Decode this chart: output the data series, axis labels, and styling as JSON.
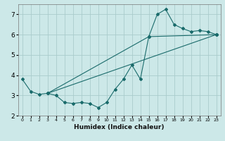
{
  "xlabel": "Humidex (Indice chaleur)",
  "xlim": [
    -0.5,
    23.5
  ],
  "ylim": [
    2,
    7.5
  ],
  "xticks": [
    0,
    1,
    2,
    3,
    4,
    5,
    6,
    7,
    8,
    9,
    10,
    11,
    12,
    13,
    14,
    15,
    16,
    17,
    18,
    19,
    20,
    21,
    22,
    23
  ],
  "yticks": [
    2,
    3,
    4,
    5,
    6,
    7
  ],
  "bg_color": "#cce8e8",
  "grid_color": "#aacccc",
  "line_color": "#1a6b6b",
  "line1_x": [
    0,
    1,
    2,
    3,
    4,
    5,
    6,
    7,
    8,
    9,
    10,
    11,
    12,
    13,
    14,
    15,
    16,
    17,
    18,
    19,
    20,
    21,
    22,
    23
  ],
  "line1_y": [
    3.8,
    3.2,
    3.05,
    3.1,
    3.0,
    2.65,
    2.6,
    2.65,
    2.6,
    2.4,
    2.65,
    3.3,
    3.8,
    4.5,
    3.8,
    5.9,
    7.0,
    7.25,
    6.5,
    6.3,
    6.15,
    6.2,
    6.15,
    6.0
  ],
  "line2_x": [
    3,
    23
  ],
  "line2_y": [
    3.1,
    6.0
  ],
  "line3_x": [
    3,
    15,
    23
  ],
  "line3_y": [
    3.1,
    5.9,
    6.0
  ]
}
